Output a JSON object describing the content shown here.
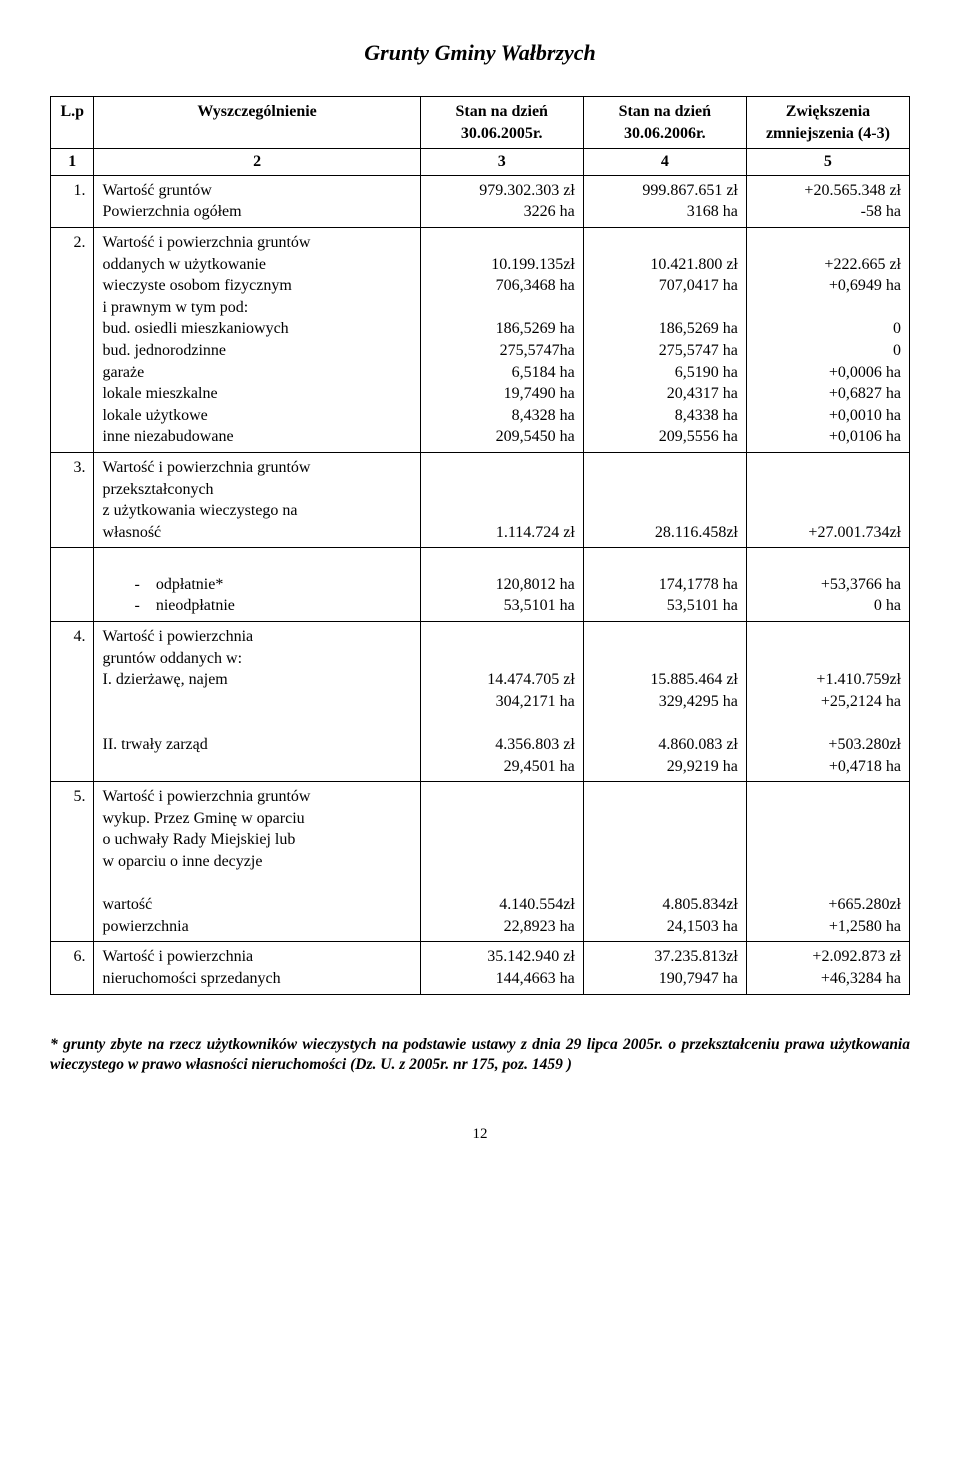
{
  "title": "Grunty Gminy Wałbrzych",
  "headers": {
    "lp": "L.p",
    "spec": "Wyszczególnienie",
    "c3": "Stan na dzień 30.06.2005r.",
    "c4": "Stan na dzień 30.06.2006r.",
    "c5": "Zwiększenia zmniejszenia (4-3)"
  },
  "colnums": {
    "c1": "1",
    "c2": "2",
    "c3": "3",
    "c4": "4",
    "c5": "5"
  },
  "r1": {
    "lp": "1.",
    "l1": "Wartość gruntów",
    "l2": "Powierzchnia ogółem",
    "c3a": "979.302.303 zł",
    "c3b": "3226 ha",
    "c4a": "999.867.651 zł",
    "c4b": "3168 ha",
    "c5a": "+20.565.348 zł",
    "c5b": "-58 ha"
  },
  "r2": {
    "lp": "2.",
    "l1": "Wartość i powierzchnia gruntów",
    "l2": "oddanych w użytkowanie",
    "l3": "wieczyste osobom fizycznym",
    "l4": "i prawnym w tym pod:",
    "l5": "bud. osiedli mieszkaniowych",
    "l6": "bud. jednorodzinne",
    "l7": "garaże",
    "l8": "lokale mieszkalne",
    "l9": "lokale użytkowe",
    "l10": "inne niezabudowane",
    "c3_2": "10.199.135zł",
    "c3_3": "706,3468 ha",
    "c3_5": "186,5269 ha",
    "c3_6": "275,5747ha",
    "c3_7": "6,5184 ha",
    "c3_8": "19,7490 ha",
    "c3_9": "8,4328 ha",
    "c3_10": "209,5450 ha",
    "c4_2": "10.421.800 zł",
    "c4_3": "707,0417 ha",
    "c4_5": "186,5269 ha",
    "c4_6": "275,5747 ha",
    "c4_7": "6,5190 ha",
    "c4_8": "20,4317 ha",
    "c4_9": "8,4338 ha",
    "c4_10": "209,5556 ha",
    "c5_2": "+222.665 zł",
    "c5_3": "+0,6949 ha",
    "c5_5": "0",
    "c5_6": "0",
    "c5_7": "+0,0006 ha",
    "c5_8": "+0,6827 ha",
    "c5_9": "+0,0010 ha",
    "c5_10": "+0,0106 ha"
  },
  "r3": {
    "lp": "3.",
    "l1": "Wartość i powierzchnia gruntów",
    "l2": "przekształconych",
    "l3": "z użytkowania wieczystego na",
    "l4": "własność",
    "c3_4": "1.114.724 zł",
    "c4_4": "28.116.458zł",
    "c5_4": "+27.001.734zł",
    "d1": "odpłatnie*",
    "d2": "nieodpłatnie",
    "c3_d1": "120,8012 ha",
    "c3_d2": "53,5101 ha",
    "c4_d1": "174,1778 ha",
    "c4_d2": "53,5101 ha",
    "c5_d1": "+53,3766 ha",
    "c5_d2": "0 ha"
  },
  "r4": {
    "lp": "4.",
    "l1": "Wartość i powierzchnia",
    "l2": "gruntów oddanych w:",
    "l3": "I. dzierżawę, najem",
    "c3_3a": "14.474.705 zł",
    "c3_3b": "304,2171 ha",
    "c4_3a": "15.885.464 zł",
    "c4_3b": "329,4295 ha",
    "c5_3a": "+1.410.759zł",
    "c5_3b": "+25,2124 ha",
    "l5": "II. trwały zarząd",
    "c3_5a": "4.356.803 zł",
    "c3_5b": "29,4501 ha",
    "c4_5a": "4.860.083 zł",
    "c4_5b": "29,9219  ha",
    "c5_5a": "+503.280zł",
    "c5_5b": "+0,4718 ha"
  },
  "r5": {
    "lp": "5.",
    "l1": "Wartość i powierzchnia gruntów",
    "l2": "wykup. Przez Gminę w oparciu",
    "l3": "o uchwały Rady Miejskiej  lub",
    "l4": "w oparciu o inne decyzje",
    "l6": "wartość",
    "l7": "powierzchnia",
    "c3_6": "4.140.554zł",
    "c3_7": "22,8923 ha",
    "c4_6": "4.805.834zł",
    "c4_7": "24,1503 ha",
    "c5_6": "+665.280zł",
    "c5_7": "+1,2580 ha"
  },
  "r6": {
    "lp": "6.",
    "l1": "Wartość i powierzchnia",
    "l2": "nieruchomości sprzedanych",
    "c3_1": "35.142.940 zł",
    "c3_2": "144,4663 ha",
    "c4_1": "37.235.813zł",
    "c4_2": "190,7947 ha",
    "c5_1": "+2.092.873 zł",
    "c5_2": "+46,3284 ha"
  },
  "footnote": "*    grunty zbyte na rzecz użytkowników wieczystych na podstawie ustawy z dnia 29 lipca 2005r. o przekształceniu prawa użytkowania wieczystego w prawo własności nieruchomości (Dz. U. z 2005r. nr 175, poz. 1459 )",
  "pagenum": "12"
}
